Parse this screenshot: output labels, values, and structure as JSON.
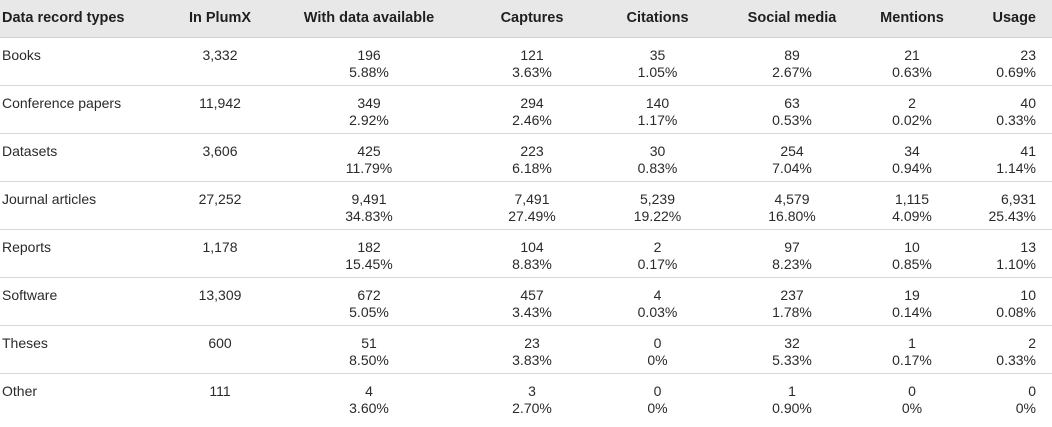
{
  "columns": [
    "Data record types",
    "In PlumX",
    "With data available",
    "Captures",
    "Citations",
    "Social media",
    "Mentions",
    "Usage"
  ],
  "rows": [
    {
      "type": "Books",
      "in_plumx": "3,332",
      "cells": [
        [
          "196",
          "5.88%"
        ],
        [
          "121",
          "3.63%"
        ],
        [
          "35",
          "1.05%"
        ],
        [
          "89",
          "2.67%"
        ],
        [
          "21",
          "0.63%"
        ],
        [
          "23",
          "0.69%"
        ]
      ]
    },
    {
      "type": "Conference papers",
      "in_plumx": "11,942",
      "cells": [
        [
          "349",
          "2.92%"
        ],
        [
          "294",
          "2.46%"
        ],
        [
          "140",
          "1.17%"
        ],
        [
          "63",
          "0.53%"
        ],
        [
          "2",
          "0.02%"
        ],
        [
          "40",
          "0.33%"
        ]
      ]
    },
    {
      "type": "Datasets",
      "in_plumx": "3,606",
      "cells": [
        [
          "425",
          "11.79%"
        ],
        [
          "223",
          "6.18%"
        ],
        [
          "30",
          "0.83%"
        ],
        [
          "254",
          "7.04%"
        ],
        [
          "34",
          "0.94%"
        ],
        [
          "41",
          "1.14%"
        ]
      ]
    },
    {
      "type": "Journal articles",
      "in_plumx": "27,252",
      "cells": [
        [
          "9,491",
          "34.83%"
        ],
        [
          "7,491",
          "27.49%"
        ],
        [
          "5,239",
          "19.22%"
        ],
        [
          "4,579",
          "16.80%"
        ],
        [
          "1,115",
          "4.09%"
        ],
        [
          "6,931",
          "25.43%"
        ]
      ]
    },
    {
      "type": "Reports",
      "in_plumx": "1,178",
      "cells": [
        [
          "182",
          "15.45%"
        ],
        [
          "104",
          "8.83%"
        ],
        [
          "2",
          "0.17%"
        ],
        [
          "97",
          "8.23%"
        ],
        [
          "10",
          "0.85%"
        ],
        [
          "13",
          "1.10%"
        ]
      ]
    },
    {
      "type": "Software",
      "in_plumx": "13,309",
      "cells": [
        [
          "672",
          "5.05%"
        ],
        [
          "457",
          "3.43%"
        ],
        [
          "4",
          "0.03%"
        ],
        [
          "237",
          "1.78%"
        ],
        [
          "19",
          "0.14%"
        ],
        [
          "10",
          "0.08%"
        ]
      ]
    },
    {
      "type": "Theses",
      "in_plumx": "600",
      "cells": [
        [
          "51",
          "8.50%"
        ],
        [
          "23",
          "3.83%"
        ],
        [
          "0",
          "0%"
        ],
        [
          "32",
          "5.33%"
        ],
        [
          "1",
          "0.17%"
        ],
        [
          "2",
          "0.33%"
        ]
      ]
    },
    {
      "type": "Other",
      "in_plumx": "111",
      "cells": [
        [
          "4",
          "3.60%"
        ],
        [
          "3",
          "2.70%"
        ],
        [
          "0",
          "0%"
        ],
        [
          "1",
          "0.90%"
        ],
        [
          "0",
          "0%"
        ],
        [
          "0",
          "0%"
        ]
      ]
    }
  ]
}
